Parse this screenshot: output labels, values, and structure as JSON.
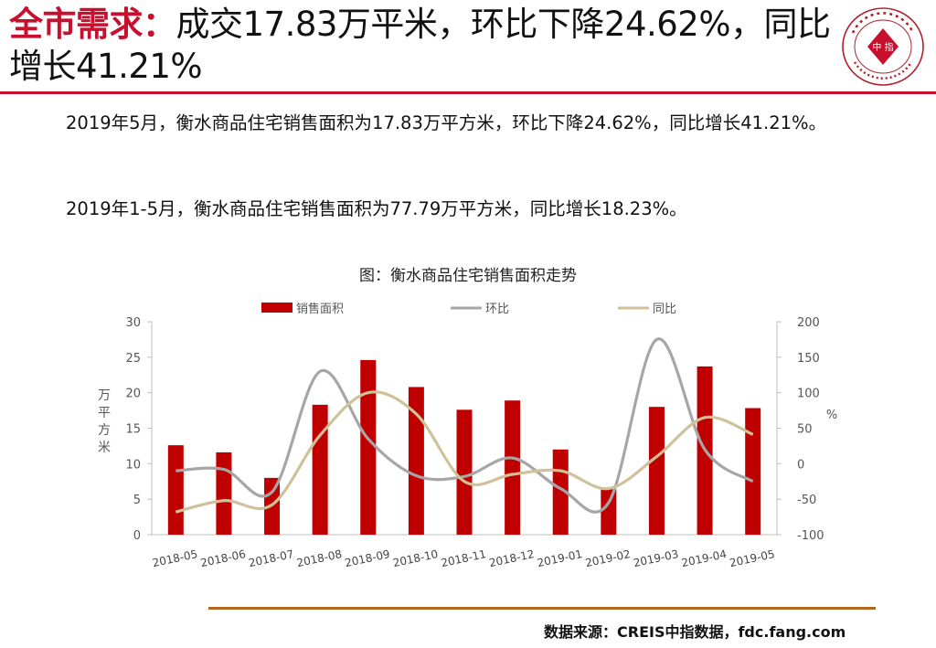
{
  "header": {
    "title_highlight": "全市需求：",
    "title_rest": "成交17.83万平米，环比下降24.62%，同比增长41.21%",
    "logo_text": "中 指"
  },
  "body": {
    "paragraph1": "2019年5月，衡水商品住宅销售面积为17.83万平方米，环比下降24.62%，同比增长41.21%。",
    "paragraph2": "2019年1-5月，衡水商品住宅销售面积为77.79万平方米，同比增长18.23%。"
  },
  "chart_data": {
    "type": "bar",
    "title": "图：衡水商品住宅销售面积走势",
    "categories": [
      "2018-05",
      "2018-06",
      "2018-07",
      "2018-08",
      "2018-09",
      "2018-10",
      "2018-11",
      "2018-12",
      "2019-01",
      "2019-02",
      "2019-03",
      "2019-04",
      "2019-05"
    ],
    "series": [
      {
        "name": "销售面积",
        "kind": "bar",
        "axis": "left",
        "color": "#c00000",
        "values": [
          12.6,
          11.6,
          8.0,
          18.3,
          24.6,
          20.8,
          17.6,
          18.9,
          12.0,
          6.4,
          18.0,
          23.7,
          17.83
        ]
      },
      {
        "name": "环比",
        "kind": "line",
        "axis": "right",
        "color": "#a6a6a6",
        "values": [
          -10,
          -8,
          -40,
          130,
          35,
          -17,
          -18,
          8,
          -35,
          -55,
          175,
          20,
          -25
        ]
      },
      {
        "name": "同比",
        "kind": "line",
        "axis": "right",
        "color": "#cfc29a",
        "values": [
          -68,
          -52,
          -58,
          40,
          100,
          70,
          -25,
          -15,
          -10,
          -35,
          10,
          65,
          41.21
        ]
      }
    ],
    "ylabel_left": "万平方米",
    "ylabel_right": "%",
    "ylim_left": [
      0,
      30
    ],
    "yticks_left": [
      "0",
      "5",
      "10",
      "15",
      "20",
      "25",
      "30"
    ],
    "ylim_right": [
      -100,
      200
    ],
    "yticks_right": [
      "-100",
      "-50",
      "0",
      "50",
      "100",
      "150",
      "200"
    ],
    "legend_position": "top",
    "grid": false
  },
  "footer": {
    "source": "数据来源：CREIS中指数据，fdc.fang.com"
  }
}
